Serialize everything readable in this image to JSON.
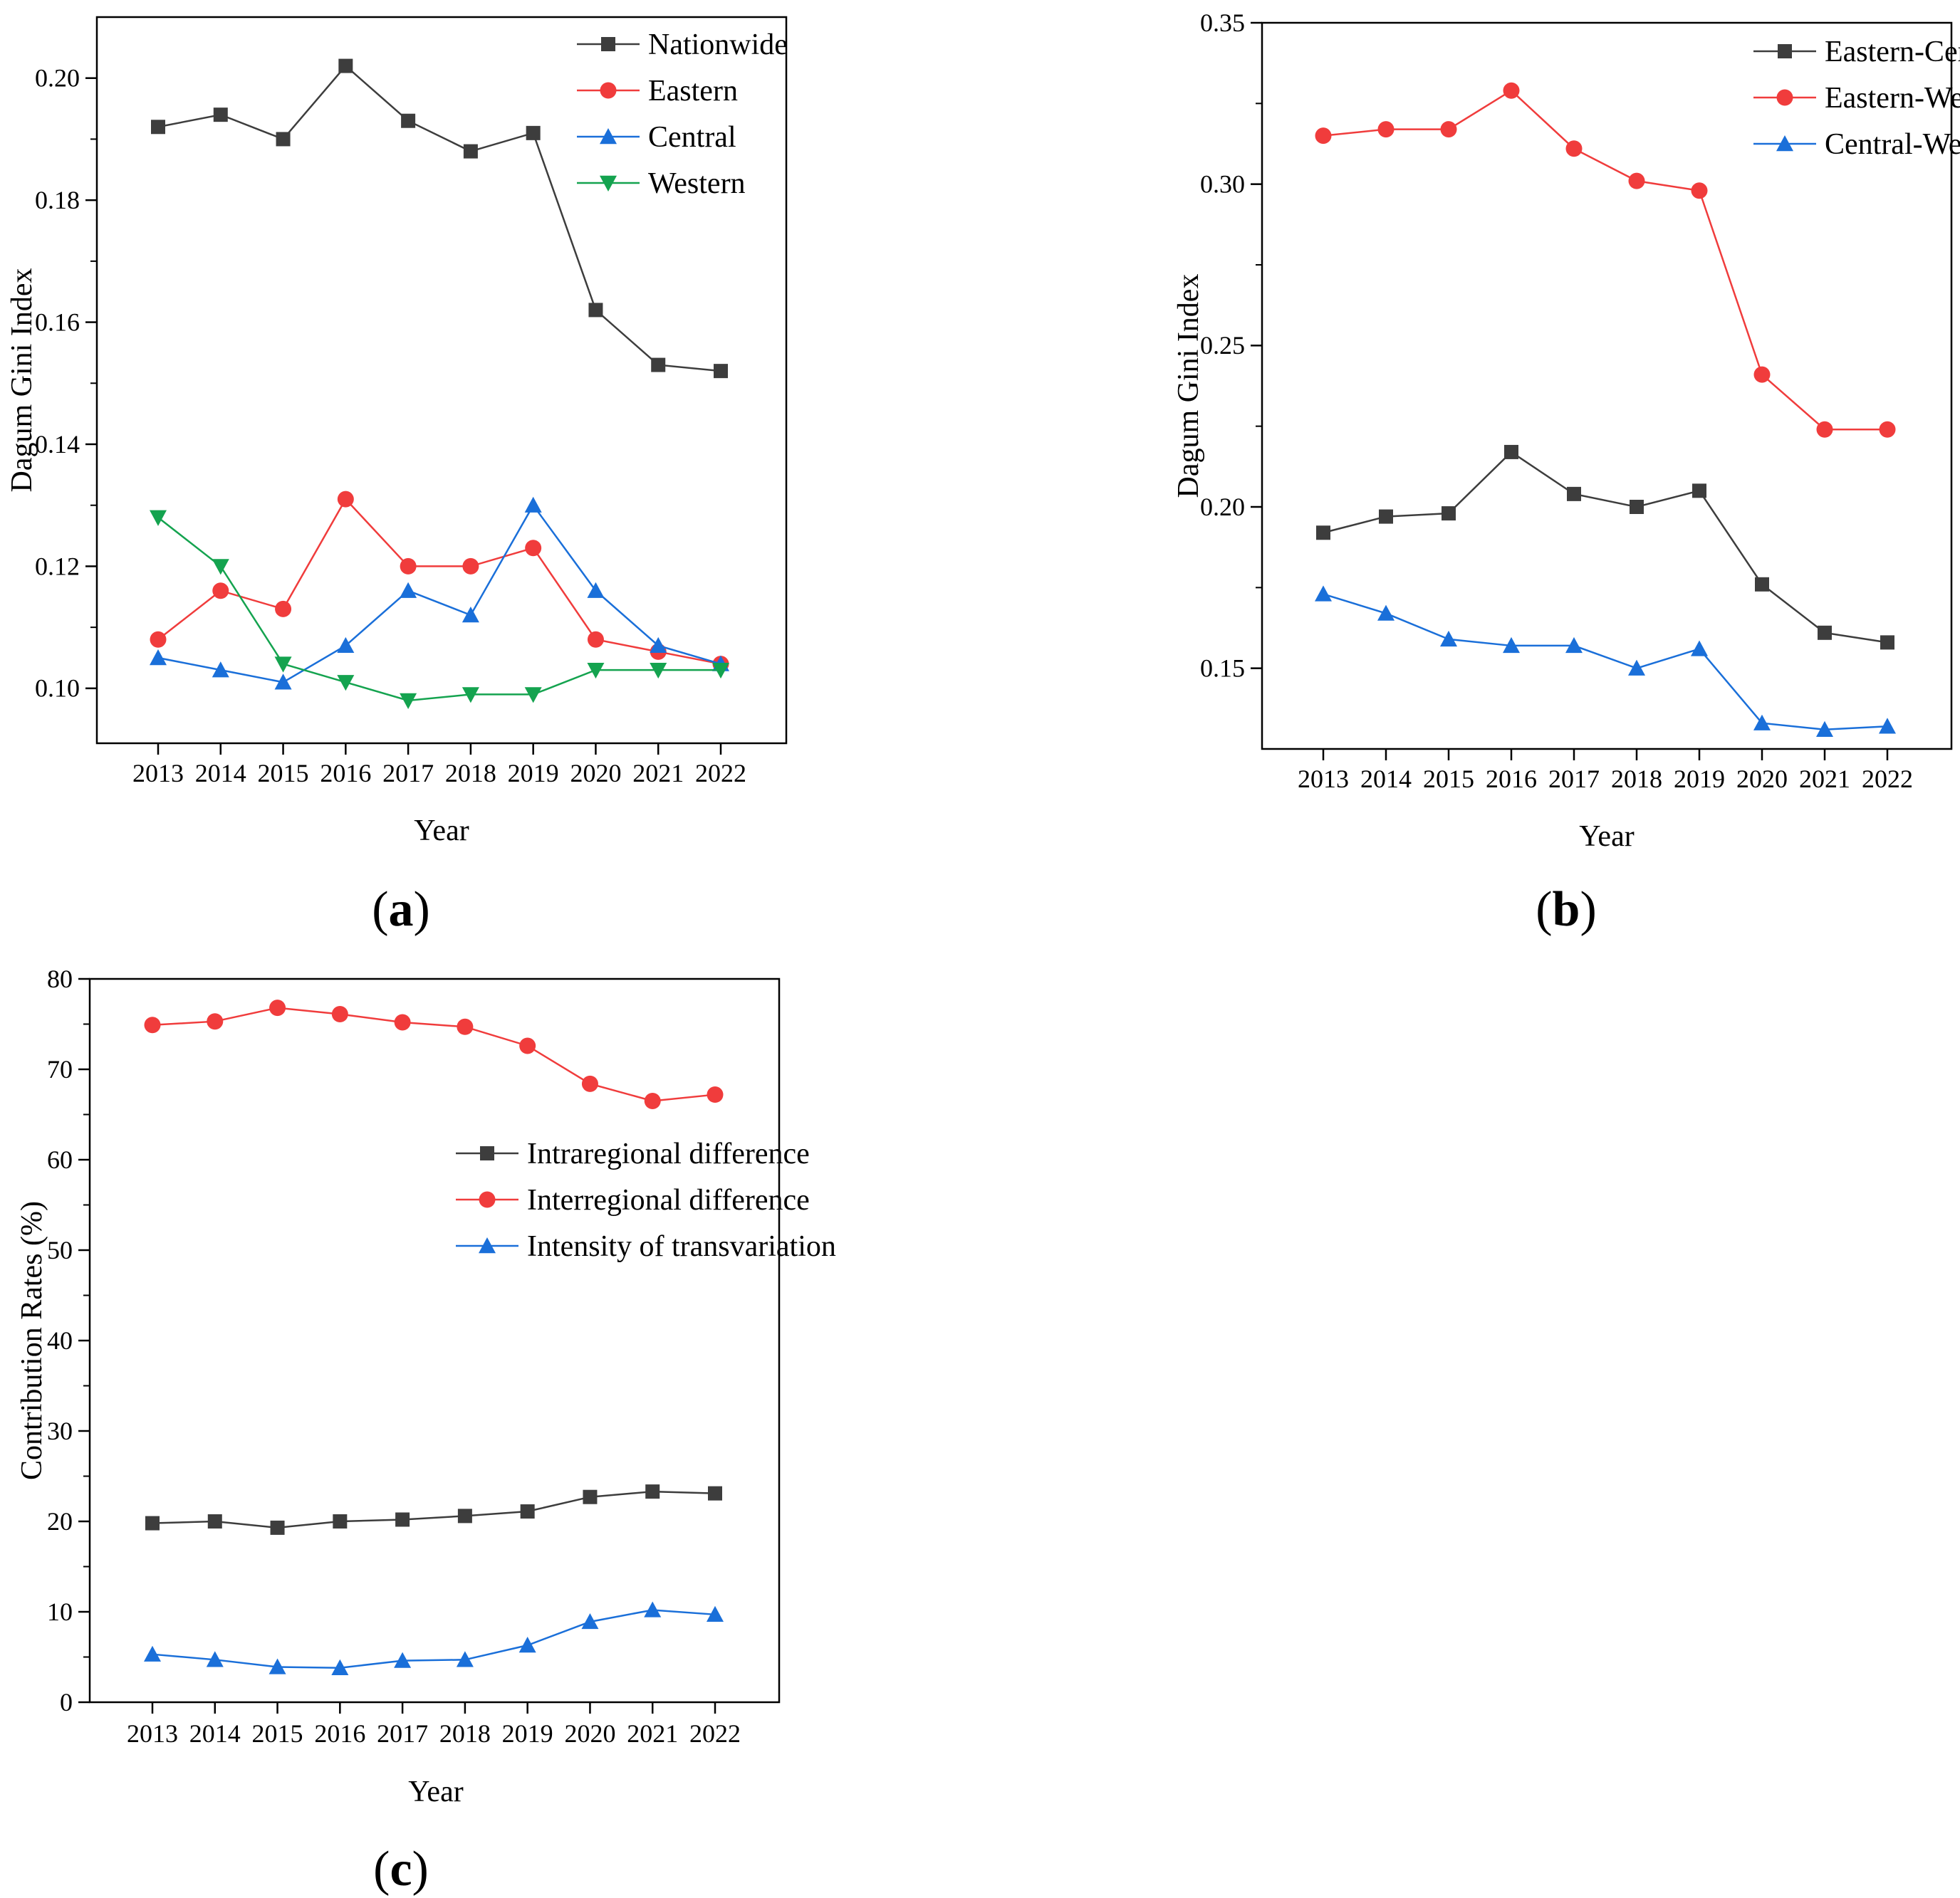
{
  "colors": {
    "black": "#3d3d3d",
    "red": "#f03c3c",
    "blue": "#1a6fd9",
    "green": "#14a34f",
    "axis": "#000000"
  },
  "chart_data": [
    {
      "panel_label": "(a)",
      "panel_letter": "a",
      "type": "line",
      "xlabel": "Year",
      "ylabel": "Dagum Gini Index",
      "categories": [
        "2013",
        "2014",
        "2015",
        "2016",
        "2017",
        "2018",
        "2019",
        "2020",
        "2021",
        "2022"
      ],
      "ylim": [
        0.091,
        0.21
      ],
      "yticks": [
        0.1,
        0.12,
        0.14,
        0.16,
        0.18,
        0.2
      ],
      "ytick_labels": [
        "0.10",
        "0.12",
        "0.14",
        "0.16",
        "0.18",
        "0.20"
      ],
      "legend_position": "top-right",
      "series": [
        {
          "name": "Nationwide",
          "color": "#3d3d3d",
          "marker": "square",
          "values": [
            0.192,
            0.194,
            0.19,
            0.202,
            0.193,
            0.188,
            0.191,
            0.162,
            0.153,
            0.152
          ]
        },
        {
          "name": "Eastern",
          "color": "#f03c3c",
          "marker": "circle",
          "values": [
            0.108,
            0.116,
            0.113,
            0.131,
            0.12,
            0.12,
            0.123,
            0.108,
            0.106,
            0.104
          ]
        },
        {
          "name": "Central",
          "color": "#1a6fd9",
          "marker": "triangle-up",
          "values": [
            0.105,
            0.103,
            0.101,
            0.107,
            0.116,
            0.112,
            0.13,
            0.116,
            0.107,
            0.104
          ]
        },
        {
          "name": "Western",
          "color": "#14a34f",
          "marker": "triangle-down",
          "values": [
            0.128,
            0.12,
            0.104,
            0.101,
            0.098,
            0.099,
            0.099,
            0.103,
            0.103,
            0.103
          ]
        }
      ]
    },
    {
      "panel_label": "(b)",
      "panel_letter": "b",
      "type": "line",
      "xlabel": "Year",
      "ylabel": "Dagum Gini Index",
      "categories": [
        "2013",
        "2014",
        "2015",
        "2016",
        "2017",
        "2018",
        "2019",
        "2020",
        "2021",
        "2022"
      ],
      "ylim": [
        0.125,
        0.35
      ],
      "yticks": [
        0.15,
        0.2,
        0.25,
        0.3,
        0.35
      ],
      "ytick_labels": [
        "0.15",
        "0.20",
        "0.25",
        "0.30",
        "0.35"
      ],
      "legend_position": "top-right",
      "series": [
        {
          "name": "Eastern-Central",
          "color": "#3d3d3d",
          "marker": "square",
          "values": [
            0.192,
            0.197,
            0.198,
            0.217,
            0.204,
            0.2,
            0.205,
            0.176,
            0.161,
            0.158
          ]
        },
        {
          "name": "Eastern-Western",
          "color": "#f03c3c",
          "marker": "circle",
          "values": [
            0.315,
            0.317,
            0.317,
            0.329,
            0.311,
            0.301,
            0.298,
            0.241,
            0.224,
            0.224
          ]
        },
        {
          "name": "Central-Western",
          "color": "#1a6fd9",
          "marker": "triangle-up",
          "values": [
            0.173,
            0.167,
            0.159,
            0.157,
            0.157,
            0.15,
            0.156,
            0.133,
            0.131,
            0.132
          ]
        }
      ]
    },
    {
      "panel_label": "(c)",
      "panel_letter": "c",
      "type": "line",
      "xlabel": "Year",
      "ylabel": "Contribution Rates (%)",
      "categories": [
        "2013",
        "2014",
        "2015",
        "2016",
        "2017",
        "2018",
        "2019",
        "2020",
        "2021",
        "2022"
      ],
      "ylim": [
        0,
        80
      ],
      "yticks": [
        0,
        10,
        20,
        30,
        40,
        50,
        60,
        70,
        80
      ],
      "ytick_labels": [
        "0",
        "10",
        "20",
        "30",
        "40",
        "50",
        "60",
        "70",
        "80"
      ],
      "legend_position": "center-right",
      "series": [
        {
          "name": "Intraregional difference",
          "color": "#3d3d3d",
          "marker": "square",
          "values": [
            19.8,
            20.0,
            19.3,
            20.0,
            20.2,
            20.6,
            21.1,
            22.7,
            23.3,
            23.1
          ]
        },
        {
          "name": "Interregional difference",
          "color": "#f03c3c",
          "marker": "circle",
          "values": [
            74.9,
            75.3,
            76.8,
            76.1,
            75.2,
            74.7,
            72.6,
            68.4,
            66.5,
            67.2
          ]
        },
        {
          "name": "Intensity of transvariation",
          "color": "#1a6fd9",
          "marker": "triangle-up",
          "values": [
            5.3,
            4.7,
            3.9,
            3.8,
            4.6,
            4.7,
            6.3,
            8.9,
            10.2,
            9.7
          ]
        }
      ]
    }
  ]
}
